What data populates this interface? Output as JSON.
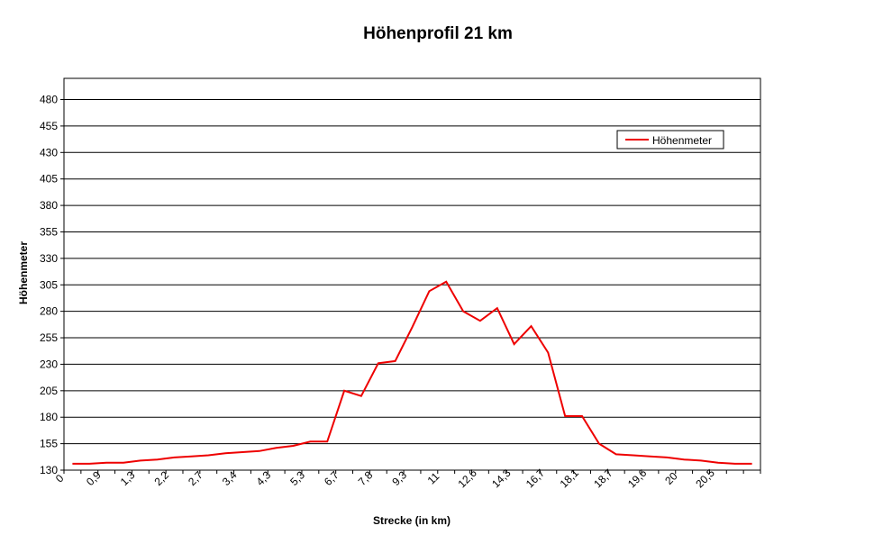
{
  "chart_data": {
    "type": "line",
    "title": "Höhenprofil 21 km",
    "xlabel": "Strecke (in km)",
    "ylabel": "Höhenmeter",
    "ylim": [
      130,
      500
    ],
    "yticks": [
      130,
      155,
      180,
      205,
      230,
      255,
      280,
      305,
      330,
      355,
      380,
      405,
      430,
      455,
      480
    ],
    "grid": true,
    "legend_position": "top-right",
    "xtick_labels": [
      "0",
      "0,9",
      "1,3",
      "2,2",
      "2,7",
      "3,4",
      "4,3",
      "5,3",
      "6,7",
      "7,8",
      "9,3",
      "11",
      "12,6",
      "14,3",
      "16,7",
      "18,1",
      "18,7",
      "19,6",
      "20",
      "20,5"
    ],
    "series": [
      {
        "name": "Höhenmeter",
        "color": "#ee0000",
        "values": [
          136,
          136,
          137,
          137,
          139,
          140,
          142,
          143,
          144,
          146,
          147,
          148,
          151,
          153,
          157,
          157,
          205,
          200,
          231,
          233,
          265,
          299,
          308,
          280,
          271,
          283,
          249,
          266,
          241,
          181,
          181,
          155,
          145,
          144,
          143,
          142,
          140,
          139,
          137,
          136,
          136
        ]
      }
    ]
  }
}
